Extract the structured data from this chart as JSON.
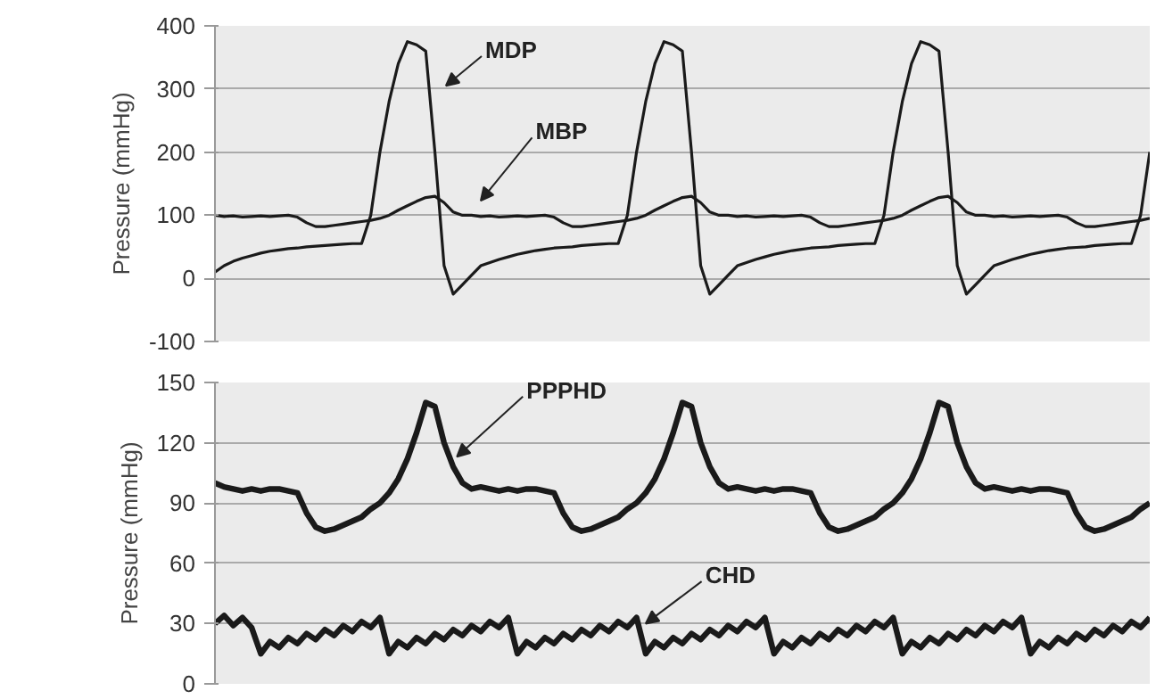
{
  "chart_data": [
    {
      "type": "line",
      "ylabel": "Pressure (mmHg)",
      "ylim": [
        -100,
        400
      ],
      "yticks": [
        -100,
        0,
        100,
        200,
        300,
        400
      ],
      "grid": "y",
      "tick_labels": "y",
      "categories": [
        null,
        null,
        null,
        null,
        null,
        null,
        null,
        null,
        null,
        null,
        null,
        null,
        null,
        null,
        null,
        null,
        null,
        null,
        null,
        null,
        null,
        null,
        null,
        null,
        null,
        null,
        null,
        null,
        null,
        null,
        null,
        null,
        null,
        null,
        null,
        null,
        null,
        null,
        null,
        null,
        null,
        null,
        null,
        null,
        null,
        null,
        null,
        null,
        null,
        null,
        null,
        null,
        null,
        null,
        null,
        null,
        null,
        null,
        null,
        null,
        null,
        null,
        null,
        null,
        null,
        null,
        null,
        null,
        null,
        null,
        null,
        null,
        null,
        null,
        null,
        null,
        null,
        null,
        null,
        null,
        null,
        null,
        null,
        null,
        null,
        null,
        null,
        null,
        null,
        null,
        null,
        null,
        null,
        null,
        null,
        null,
        null,
        null,
        null,
        null,
        null,
        null,
        null
      ],
      "series": [
        {
          "name": "MDP",
          "color": "#1a1a1a",
          "values": [
            10,
            20,
            27,
            32,
            36,
            40,
            43,
            45,
            47,
            48,
            50,
            51,
            52,
            53,
            54,
            55,
            55,
            100,
            200,
            280,
            340,
            375,
            370,
            360,
            200,
            20,
            -25,
            -10,
            5,
            20,
            25,
            30,
            34,
            38,
            41,
            44,
            46,
            48,
            49,
            50,
            52,
            53,
            54,
            55,
            55,
            100,
            200,
            280,
            340,
            375,
            370,
            360,
            200,
            20,
            -25,
            -10,
            5,
            20,
            25,
            30,
            34,
            38,
            41,
            44,
            46,
            48,
            49,
            50,
            52,
            53,
            54,
            55,
            55,
            100,
            200,
            280,
            340,
            375,
            370,
            360,
            200,
            20,
            -25,
            -10,
            5,
            20,
            25,
            30,
            34,
            38,
            41,
            44,
            46,
            48,
            49,
            50,
            52,
            53,
            54,
            55,
            55,
            100,
            200
          ]
        },
        {
          "name": "MBP",
          "color": "#1a1a1a",
          "values": [
            100,
            98,
            99,
            97,
            98,
            99,
            98,
            99,
            100,
            97,
            88,
            82,
            82,
            84,
            86,
            88,
            90,
            92,
            95,
            100,
            108,
            115,
            122,
            128,
            130,
            120,
            105,
            100,
            100,
            98,
            99,
            97,
            98,
            99,
            98,
            99,
            100,
            97,
            88,
            82,
            82,
            84,
            86,
            88,
            90,
            92,
            95,
            100,
            108,
            115,
            122,
            128,
            130,
            120,
            105,
            100,
            100,
            98,
            99,
            97,
            98,
            99,
            98,
            99,
            100,
            97,
            88,
            82,
            82,
            84,
            86,
            88,
            90,
            92,
            95,
            100,
            108,
            115,
            122,
            128,
            130,
            120,
            105,
            100,
            100,
            98,
            99,
            97,
            98,
            99,
            98,
            99,
            100,
            97,
            88,
            82,
            82,
            84,
            86,
            88,
            90,
            92,
            95
          ]
        }
      ]
    },
    {
      "type": "line",
      "ylabel": "Pressure (mmHg)",
      "ylim": [
        0,
        150
      ],
      "yticks": [
        0,
        30,
        60,
        90,
        120,
        150
      ],
      "grid": "y",
      "tick_labels": "y",
      "categories": [
        null,
        null,
        null,
        null,
        null,
        null,
        null,
        null,
        null,
        null,
        null,
        null,
        null,
        null,
        null,
        null,
        null,
        null,
        null,
        null,
        null,
        null,
        null,
        null,
        null,
        null,
        null,
        null,
        null,
        null,
        null,
        null,
        null,
        null,
        null,
        null,
        null,
        null,
        null,
        null,
        null,
        null,
        null,
        null,
        null,
        null,
        null,
        null,
        null,
        null,
        null,
        null,
        null,
        null,
        null,
        null,
        null,
        null,
        null,
        null,
        null,
        null,
        null,
        null,
        null,
        null,
        null,
        null,
        null,
        null,
        null,
        null,
        null,
        null,
        null,
        null,
        null,
        null,
        null,
        null,
        null,
        null,
        null,
        null,
        null,
        null,
        null,
        null,
        null,
        null,
        null,
        null,
        null,
        null,
        null,
        null,
        null,
        null,
        null,
        null,
        null,
        null,
        null
      ],
      "series": [
        {
          "name": "PPPHD",
          "color": "#1a1a1a",
          "values": [
            100,
            98,
            97,
            96,
            97,
            96,
            97,
            97,
            96,
            95,
            85,
            78,
            76,
            77,
            79,
            81,
            83,
            87,
            90,
            95,
            102,
            112,
            125,
            140,
            138,
            120,
            108,
            100,
            97,
            98,
            97,
            96,
            97,
            96,
            97,
            97,
            96,
            95,
            85,
            78,
            76,
            77,
            79,
            81,
            83,
            87,
            90,
            95,
            102,
            112,
            125,
            140,
            138,
            120,
            108,
            100,
            97,
            98,
            97,
            96,
            97,
            96,
            97,
            97,
            96,
            95,
            85,
            78,
            76,
            77,
            79,
            81,
            83,
            87,
            90,
            95,
            102,
            112,
            125,
            140,
            138,
            120,
            108,
            100,
            97,
            98,
            97,
            96,
            97,
            96,
            97,
            97,
            96,
            95,
            85,
            78,
            76,
            77,
            79,
            81,
            83,
            87,
            90
          ]
        },
        {
          "name": "CHD",
          "color": "#1a1a1a",
          "values": [
            30,
            34,
            29,
            33,
            28,
            15,
            21,
            18,
            23,
            20,
            25,
            22,
            27,
            24,
            29,
            26,
            31,
            28,
            33,
            15,
            21,
            18,
            23,
            20,
            25,
            22,
            27,
            24,
            29,
            26,
            31,
            28,
            33,
            15,
            21,
            18,
            23,
            20,
            25,
            22,
            27,
            24,
            29,
            26,
            31,
            28,
            33,
            15,
            21,
            18,
            23,
            20,
            25,
            22,
            27,
            24,
            29,
            26,
            31,
            28,
            33,
            15,
            21,
            18,
            23,
            20,
            25,
            22,
            27,
            24,
            29,
            26,
            31,
            28,
            33,
            15,
            21,
            18,
            23,
            20,
            25,
            22,
            27,
            24,
            29,
            26,
            31,
            28,
            33,
            15,
            21,
            18,
            23,
            20,
            25,
            22,
            27,
            24,
            29,
            26,
            31,
            28,
            33
          ]
        }
      ]
    }
  ]
}
